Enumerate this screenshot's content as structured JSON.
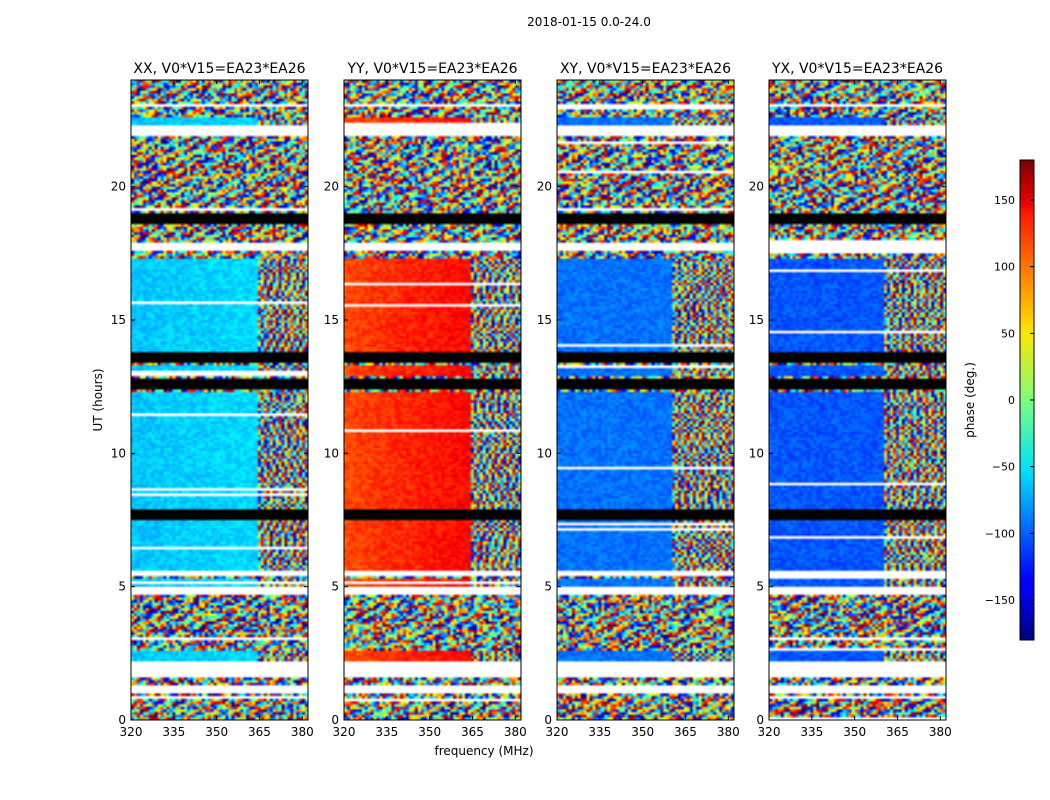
{
  "figure": {
    "suptitle": "2018-01-15 0.0-24.0"
  },
  "chart_data": [
    {
      "type": "heatmap",
      "title": "XX, V0*V15=EA23*EA26",
      "xlabel": "",
      "ylabel": "UT (hours)",
      "xlim": [
        320,
        382
      ],
      "ylim": [
        0,
        24
      ],
      "x_ticks": [
        "320",
        "335",
        "350",
        "365",
        "380"
      ],
      "y_ticks": [
        "0",
        "5",
        "10",
        "15",
        "20"
      ],
      "coherent_phase_deg": -65,
      "drift_deg": 10,
      "rfi_start_mhz": 364
    },
    {
      "type": "heatmap",
      "title": "YY, V0*V15=EA23*EA26",
      "xlabel": "frequency (MHz)",
      "ylabel": "",
      "xlim": [
        320,
        382
      ],
      "ylim": [
        0,
        24
      ],
      "x_ticks": [
        "320",
        "335",
        "350",
        "365",
        "380"
      ],
      "y_ticks": [
        "0",
        "5",
        "10",
        "15",
        "20"
      ],
      "coherent_phase_deg": 110,
      "drift_deg": 35,
      "rfi_start_mhz": 364
    },
    {
      "type": "heatmap",
      "title": "XY, V0*V15=EA23*EA26",
      "xlabel": "",
      "ylabel": "",
      "xlim": [
        320,
        382
      ],
      "ylim": [
        0,
        24
      ],
      "x_ticks": [
        "320",
        "335",
        "350",
        "365",
        "380"
      ],
      "y_ticks": [
        "0",
        "5",
        "10",
        "15",
        "20"
      ],
      "coherent_phase_deg": -95,
      "drift_deg": 0,
      "rfi_start_mhz": 360
    },
    {
      "type": "heatmap",
      "title": "YX, V0*V15=EA23*EA26",
      "xlabel": "",
      "ylabel": "",
      "xlim": [
        320,
        382
      ],
      "ylim": [
        0,
        24
      ],
      "x_ticks": [
        "320",
        "335",
        "350",
        "365",
        "380"
      ],
      "y_ticks": [
        "0",
        "5",
        "10",
        "15",
        "20"
      ],
      "coherent_phase_deg": -105,
      "drift_deg": 0,
      "rfi_start_mhz": 360
    }
  ],
  "colorbar": {
    "label": "phase (deg.)",
    "vmin": -180,
    "vmax": 180,
    "colormap": "jet",
    "ticks": [
      "−150",
      "−100",
      "−50",
      "0",
      "50",
      "100",
      "150"
    ],
    "tick_values": [
      -150,
      -100,
      -50,
      0,
      50,
      100,
      150
    ]
  },
  "flagged_hours": [
    [
      12.4,
      12.85
    ],
    [
      13.4,
      13.8
    ],
    [
      7.5,
      7.65
    ],
    [
      7.75,
      7.85
    ],
    [
      18.6,
      19.0
    ]
  ],
  "blank_hours": [
    [
      0.95,
      1.3
    ],
    [
      1.6,
      2.2
    ],
    [
      4.65,
      5.0
    ],
    [
      5.4,
      5.65
    ],
    [
      17.6,
      17.95
    ],
    [
      21.95,
      22.35
    ],
    [
      23.0,
      23.15
    ]
  ],
  "coherent_hours": [
    [
      2.2,
      2.65
    ],
    [
      5.05,
      5.35
    ],
    [
      5.65,
      7.45
    ],
    [
      7.9,
      12.35
    ],
    [
      12.9,
      13.35
    ],
    [
      13.85,
      17.3
    ],
    [
      22.35,
      22.6
    ]
  ]
}
